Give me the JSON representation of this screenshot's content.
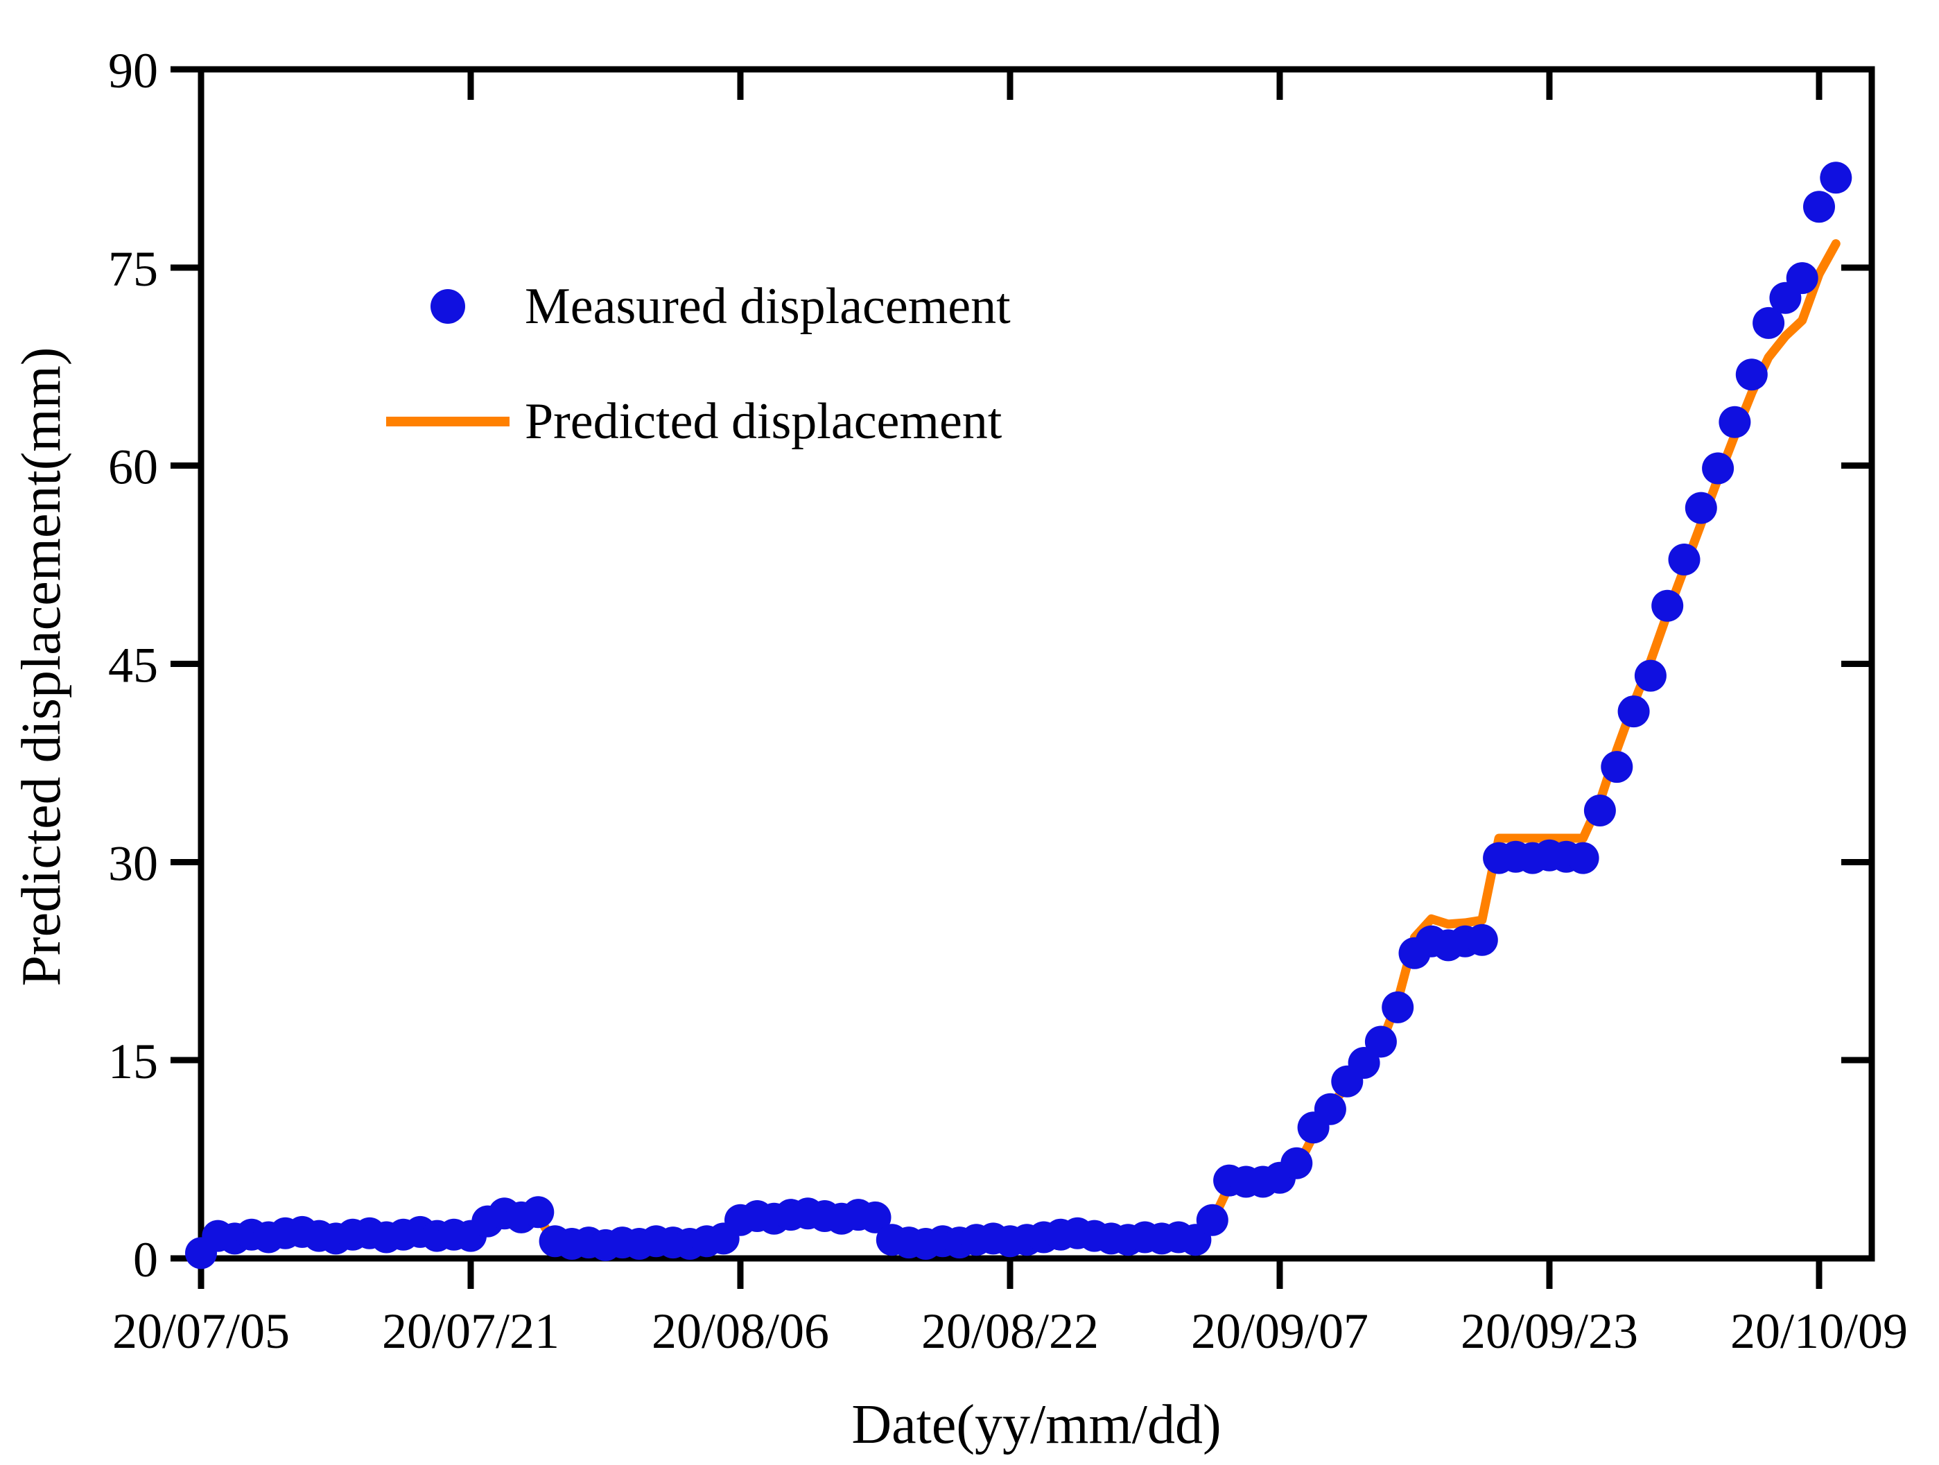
{
  "chart_data": {
    "type": "scatter",
    "title": "",
    "xlabel": "Date(yy/mm/dd)",
    "ylabel": "Predicted displacement(mm)",
    "x_tick_labels": [
      "20/07/05",
      "20/07/21",
      "20/08/06",
      "20/08/22",
      "20/09/07",
      "20/09/23",
      "20/10/09"
    ],
    "x_tick_interval_days": 16,
    "ylim": [
      0,
      90
    ],
    "y_ticks": [
      0,
      15,
      30,
      45,
      60,
      75,
      90
    ],
    "grid": "off",
    "legend_position": "upper-left-inside",
    "colors": {
      "measured": "#1010e0",
      "predicted": "#ff8000",
      "axis": "#000000",
      "background": "#ffffff"
    },
    "dates": [
      "20/07/05",
      "20/07/06",
      "20/07/07",
      "20/07/08",
      "20/07/09",
      "20/07/10",
      "20/07/11",
      "20/07/12",
      "20/07/13",
      "20/07/14",
      "20/07/15",
      "20/07/16",
      "20/07/17",
      "20/07/18",
      "20/07/19",
      "20/07/20",
      "20/07/21",
      "20/07/22",
      "20/07/23",
      "20/07/24",
      "20/07/25",
      "20/07/26",
      "20/07/27",
      "20/07/28",
      "20/07/29",
      "20/07/30",
      "20/07/31",
      "20/08/01",
      "20/08/02",
      "20/08/03",
      "20/08/04",
      "20/08/05",
      "20/08/06",
      "20/08/07",
      "20/08/08",
      "20/08/09",
      "20/08/10",
      "20/08/11",
      "20/08/12",
      "20/08/13",
      "20/08/14",
      "20/08/15",
      "20/08/16",
      "20/08/17",
      "20/08/18",
      "20/08/19",
      "20/08/20",
      "20/08/21",
      "20/08/22",
      "20/08/23",
      "20/08/24",
      "20/08/25",
      "20/08/26",
      "20/08/27",
      "20/08/28",
      "20/08/29",
      "20/08/30",
      "20/08/31",
      "20/09/01",
      "20/09/02",
      "20/09/03",
      "20/09/04",
      "20/09/05",
      "20/09/06",
      "20/09/07",
      "20/09/08",
      "20/09/09",
      "20/09/10",
      "20/09/11",
      "20/09/12",
      "20/09/13",
      "20/09/14",
      "20/09/15",
      "20/09/16",
      "20/09/17",
      "20/09/18",
      "20/09/19",
      "20/09/20",
      "20/09/21",
      "20/09/22",
      "20/09/23",
      "20/09/24",
      "20/09/25",
      "20/09/26",
      "20/09/27",
      "20/09/28",
      "20/09/29",
      "20/09/30",
      "20/10/01",
      "20/10/02",
      "20/10/03",
      "20/10/04",
      "20/10/05",
      "20/10/06",
      "20/10/07",
      "20/10/08",
      "20/10/09",
      "20/10/10"
    ],
    "series": [
      {
        "name": "Measured displacement",
        "type": "scatter",
        "marker": "circle",
        "color": "#1010e0",
        "values": [
          0.4,
          1.7,
          1.5,
          1.8,
          1.6,
          1.9,
          2.0,
          1.7,
          1.5,
          1.8,
          1.9,
          1.6,
          1.8,
          2.0,
          1.7,
          1.8,
          1.7,
          2.8,
          3.4,
          3.1,
          3.5,
          1.3,
          1.1,
          1.2,
          1.0,
          1.2,
          1.1,
          1.3,
          1.2,
          1.1,
          1.3,
          1.5,
          2.9,
          3.2,
          3.0,
          3.3,
          3.4,
          3.2,
          3.0,
          3.3,
          3.1,
          1.4,
          1.2,
          1.1,
          1.3,
          1.2,
          1.4,
          1.5,
          1.3,
          1.4,
          1.6,
          1.8,
          1.9,
          1.7,
          1.5,
          1.4,
          1.6,
          1.5,
          1.6,
          1.4,
          2.9,
          5.9,
          5.8,
          5.8,
          6.1,
          7.2,
          9.9,
          11.3,
          13.4,
          14.8,
          16.4,
          19.0,
          23.1,
          24.0,
          23.7,
          24.0,
          24.1,
          30.3,
          30.4,
          30.3,
          30.5,
          30.4,
          30.3,
          33.9,
          37.2,
          41.4,
          44.1,
          49.4,
          52.9,
          56.8,
          59.8,
          63.3,
          66.9,
          70.8,
          72.7,
          74.2,
          79.6,
          81.8
        ]
      },
      {
        "name": "Predicted displacement",
        "type": "line",
        "color": "#ff8000",
        "values": [
          0.0,
          1.4,
          1.3,
          1.5,
          1.4,
          1.6,
          1.7,
          1.5,
          1.3,
          1.5,
          1.6,
          1.4,
          1.5,
          1.7,
          1.5,
          1.5,
          1.4,
          2.9,
          3.1,
          2.9,
          3.2,
          1.1,
          1.0,
          1.1,
          0.9,
          1.1,
          1.0,
          1.2,
          1.1,
          1.0,
          1.2,
          1.3,
          3.0,
          3.1,
          3.0,
          3.2,
          3.3,
          3.1,
          3.0,
          3.2,
          3.0,
          1.2,
          1.1,
          1.0,
          1.2,
          1.1,
          1.3,
          1.4,
          1.2,
          1.3,
          1.5,
          1.6,
          1.7,
          1.5,
          1.3,
          1.2,
          1.4,
          1.3,
          1.4,
          1.2,
          2.8,
          5.5,
          5.6,
          5.5,
          5.8,
          6.8,
          9.3,
          11.6,
          13.0,
          14.5,
          16.2,
          19.5,
          24.3,
          25.7,
          25.3,
          25.4,
          25.6,
          31.8,
          31.8,
          31.8,
          31.8,
          31.8,
          31.8,
          34.6,
          38.5,
          42.0,
          45.2,
          48.8,
          52.2,
          55.6,
          59.0,
          62.3,
          65.5,
          68.2,
          69.8,
          71.0,
          74.5,
          76.8
        ]
      }
    ]
  }
}
